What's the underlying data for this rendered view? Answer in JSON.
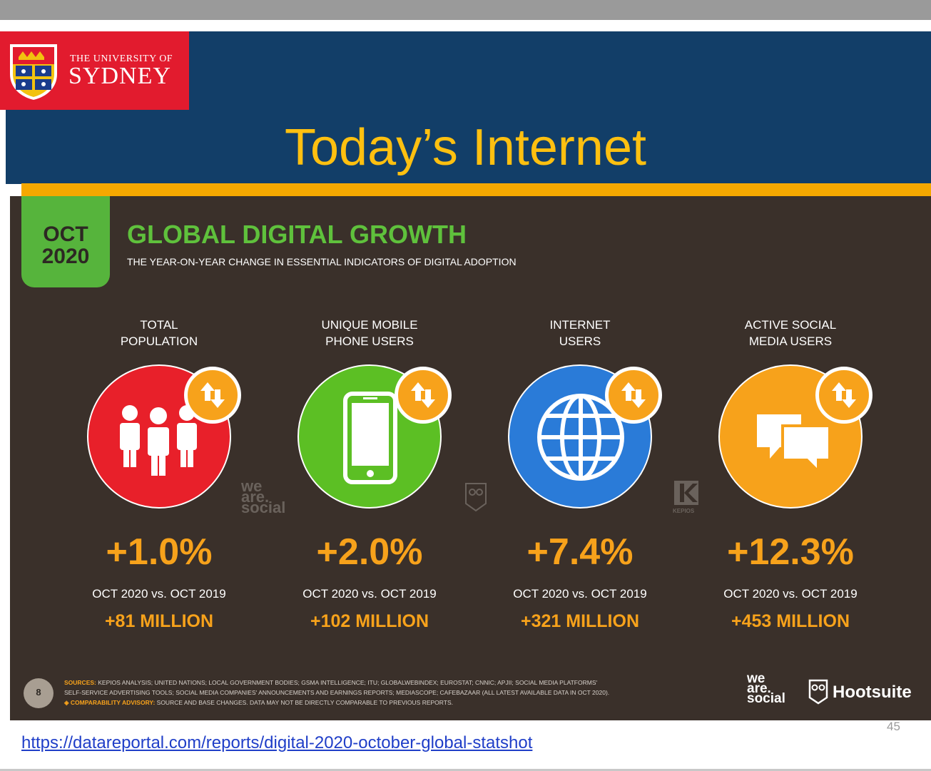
{
  "header": {
    "logo_line1": "THE UNIVERSITY OF",
    "logo_line2": "SYDNEY",
    "title": "Today’s Internet"
  },
  "panel": {
    "date_line1": "OCT",
    "date_line2": "2020",
    "heading": "GLOBAL DIGITAL GROWTH",
    "subheading": "THE YEAR-ON-YEAR CHANGE IN ESSENTIAL INDICATORS OF DIGITAL ADOPTION",
    "comparison_label": "OCT 2020 vs. OCT 2019",
    "indicators": [
      {
        "label_line1": "TOTAL",
        "label_line2": "POPULATION",
        "change": "+1.0%",
        "absolute": "+81 MILLION",
        "color": "#e8202a",
        "icon": "people-icon"
      },
      {
        "label_line1": "UNIQUE MOBILE",
        "label_line2": "PHONE USERS",
        "change": "+2.0%",
        "absolute": "+102 MILLION",
        "color": "#5cbf24",
        "icon": "mobile-phone-icon"
      },
      {
        "label_line1": "INTERNET",
        "label_line2": "USERS",
        "change": "+7.4%",
        "absolute": "+321 MILLION",
        "color": "#2a7bd8",
        "icon": "globe-icon"
      },
      {
        "label_line1": "ACTIVE SOCIAL",
        "label_line2": "MEDIA USERS",
        "change": "+12.3%",
        "absolute": "+453 MILLION",
        "color": "#f7a21b",
        "icon": "chat-bubbles-icon"
      }
    ],
    "watermarks": {
      "wearesocial": [
        "we",
        "are.",
        "social"
      ],
      "kepios": "KEPIOS"
    },
    "footer": {
      "page_number": "8",
      "sources_label": "SOURCES:",
      "sources_line1": "KEPIOS ANALYSIS; UNITED NATIONS; LOCAL GOVERNMENT BODIES; GSMA INTELLIGENCE; ITU; GLOBALWEBINDEX; EUROSTAT; CNNIC; APJII; SOCIAL MEDIA PLATFORMS'",
      "sources_line2": "SELF-SERVICE ADVERTISING TOOLS; SOCIAL MEDIA COMPANIES' ANNOUNCEMENTS AND EARNINGS REPORTS; MEDIASCOPE; CAFEBAZAAR (ALL LATEST AVAILABLE DATA IN OCT 2020).",
      "advisory_label": "◈ COMPARABILITY ADVISORY:",
      "advisory_text": "SOURCE AND BASE CHANGES. DATA MAY NOT BE DIRECTLY COMPARABLE TO PREVIOUS REPORTS.",
      "brand_wearesocial": [
        "we",
        "are.",
        "social"
      ],
      "brand_hootsuite": "Hootsuite"
    }
  },
  "slide_number": "45",
  "source_link": "https://datareportal.com/reports/digital-2020-october-global-statshot"
}
